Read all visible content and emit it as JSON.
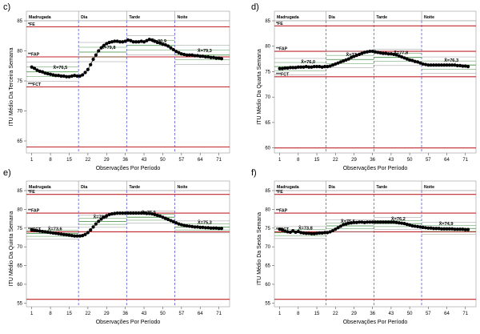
{
  "figure": {
    "xlabel": "Observações Por Período",
    "period_labels": [
      "Madrugada",
      "Dia",
      "Tarde",
      "Noite"
    ]
  },
  "colors": {
    "limit_line": "#c0262d",
    "period_divider": "#5b5bd6",
    "data": "#000000",
    "mean_line": "#8a8a8a",
    "mean_accent": "#3a8a3a"
  },
  "chart_data": [
    {
      "panel_label": "c)",
      "type": "line",
      "ylabel": "ITU Médio Da Terceira Semana",
      "ylim": [
        63,
        85
      ],
      "yticks": [
        65,
        70,
        75,
        80,
        85
      ],
      "xticks": [
        1,
        8,
        15,
        22,
        29,
        36,
        43,
        50,
        57,
        64,
        71
      ],
      "xlim": [
        -1,
        75
      ],
      "period_bounds": [
        18.5,
        36.5,
        54.5
      ],
      "limit_lines": [
        {
          "label": "*FE",
          "value": 84
        },
        {
          "label": "**FAP",
          "value": 79
        },
        {
          "label": "***FCT",
          "value": 74
        },
        {
          "label": "",
          "value": 64
        }
      ],
      "means": [
        {
          "label": "X̄=76,5",
          "value": 76.5,
          "label_x": 9
        },
        {
          "label": "X̄=79,8",
          "value": 79.8,
          "label_x": 27
        },
        {
          "label": "X̄=80,9",
          "value": 80.9,
          "label_x": 46
        },
        {
          "label": "X̄=79,3",
          "value": 79.3,
          "label_x": 63
        }
      ],
      "series": [
        {
          "values": [
            77.3,
            77.1,
            76.8,
            76.6,
            76.5,
            76.3,
            76.2,
            76.1,
            76.0,
            75.9,
            75.9,
            75.8,
            75.8,
            75.7,
            75.7,
            75.8,
            75.9,
            75.8,
            75.8,
            76.0,
            76.4,
            76.9,
            77.7,
            78.6,
            79.3,
            80.0,
            80.5,
            80.9,
            81.2,
            81.4,
            81.5,
            81.6,
            81.6,
            81.5,
            81.5,
            81.6,
            81.8,
            81.7,
            81.5,
            81.5,
            81.5,
            81.6,
            81.5,
            81.7,
            81.9,
            81.8,
            81.6,
            81.4,
            81.3,
            81.1,
            81.0,
            80.8,
            80.5,
            80.2,
            79.9,
            79.7,
            79.5,
            79.4,
            79.3,
            79.3,
            79.3,
            79.2,
            79.2,
            79.1,
            79.1,
            79.0,
            79.0,
            78.9,
            78.9,
            78.8,
            78.8,
            78.7
          ]
        }
      ]
    },
    {
      "panel_label": "d)",
      "type": "line",
      "ylabel": "ITU Médio Da Quarta Semana",
      "ylim": [
        59,
        85
      ],
      "yticks": [
        60,
        65,
        70,
        75,
        80,
        85
      ],
      "xticks": [
        1,
        8,
        15,
        22,
        29,
        36,
        43,
        50,
        57,
        64,
        71
      ],
      "xlim": [
        -1,
        75
      ],
      "period_bounds": [
        18.5,
        36.5,
        54.5
      ],
      "limit_lines": [
        {
          "label": "*FE",
          "value": 84
        },
        {
          "label": "**FAP",
          "value": 79
        },
        {
          "label": "***FCT",
          "value": 74
        },
        {
          "label": "",
          "value": 60
        }
      ],
      "means": [
        {
          "label": "X̄=76,0",
          "value": 76.0,
          "label_x": 9
        },
        {
          "label": "X̄=77,4",
          "value": 77.4,
          "label_x": 26
        },
        {
          "label": "X̄=77,8",
          "value": 77.8,
          "label_x": 44
        },
        {
          "label": "X̄=76,3",
          "value": 76.3,
          "label_x": 63
        }
      ],
      "series": [
        {
          "values": [
            75.6,
            75.6,
            75.7,
            75.7,
            75.8,
            75.8,
            75.8,
            75.9,
            75.9,
            75.9,
            76.0,
            75.9,
            75.9,
            76.0,
            76.0,
            76.0,
            75.9,
            76.0,
            76.0,
            76.1,
            76.3,
            76.5,
            76.7,
            76.9,
            77.1,
            77.3,
            77.5,
            77.8,
            78.0,
            78.2,
            78.4,
            78.6,
            78.8,
            78.9,
            79.0,
            79.0,
            78.9,
            78.8,
            78.7,
            78.6,
            78.6,
            78.5,
            78.5,
            78.4,
            78.3,
            78.1,
            77.9,
            77.7,
            77.5,
            77.3,
            77.2,
            77.0,
            76.9,
            76.7,
            76.5,
            76.4,
            76.3,
            76.3,
            76.3,
            76.3,
            76.3,
            76.3,
            76.3,
            76.3,
            76.3,
            76.3,
            76.3,
            76.2,
            76.2,
            76.1,
            76.1,
            76.0
          ]
        }
      ]
    },
    {
      "panel_label": "e)",
      "type": "line",
      "ylabel": "ITU Médio Da Quinta Semana",
      "ylim": [
        54,
        85
      ],
      "yticks": [
        55,
        60,
        65,
        70,
        75,
        80,
        85
      ],
      "xticks": [
        1,
        8,
        15,
        22,
        29,
        36,
        43,
        50,
        57,
        64,
        71
      ],
      "xlim": [
        -1,
        75
      ],
      "period_bounds": [
        18.5,
        36.5,
        54.5
      ],
      "limit_lines": [
        {
          "label": "*FE",
          "value": 84
        },
        {
          "label": "**FAP",
          "value": 79
        },
        {
          "label": "***FCT",
          "value": 74
        },
        {
          "label": "",
          "value": 56
        }
      ],
      "means": [
        {
          "label": "X̄=73,6",
          "value": 73.6,
          "label_x": 7
        },
        {
          "label": "X̄=76,8",
          "value": 76.8,
          "label_x": 24
        },
        {
          "label": "X̄=77,9",
          "value": 77.9,
          "label_x": 42
        },
        {
          "label": "X̄=75,3",
          "value": 75.3,
          "label_x": 63
        }
      ],
      "series": [
        {
          "values": [
            74.5,
            74.4,
            74.3,
            74.2,
            74.1,
            74.0,
            73.9,
            73.8,
            73.7,
            73.6,
            73.5,
            73.4,
            73.3,
            73.2,
            73.1,
            73.0,
            72.9,
            72.9,
            72.9,
            73.0,
            73.3,
            73.8,
            74.5,
            75.3,
            76.1,
            76.8,
            77.4,
            77.9,
            78.3,
            78.6,
            78.8,
            78.9,
            79.0,
            79.0,
            79.0,
            79.0,
            79.0,
            79.0,
            79.0,
            79.0,
            79.0,
            79.0,
            79.0,
            78.9,
            78.9,
            78.8,
            78.6,
            78.4,
            78.2,
            77.9,
            77.6,
            77.3,
            77.0,
            76.7,
            76.4,
            76.1,
            75.9,
            75.7,
            75.6,
            75.5,
            75.4,
            75.3,
            75.3,
            75.2,
            75.2,
            75.1,
            75.1,
            75.0,
            75.0,
            75.0,
            74.9,
            74.9
          ]
        }
      ]
    },
    {
      "panel_label": "f)",
      "type": "line",
      "ylabel": "ITU Médio Da Sexta Semana",
      "ylim": [
        54,
        85
      ],
      "yticks": [
        55,
        60,
        65,
        70,
        75,
        80,
        85
      ],
      "xticks": [
        1,
        8,
        15,
        22,
        29,
        36,
        43,
        50,
        57,
        64,
        71
      ],
      "xlim": [
        -1,
        75
      ],
      "period_bounds": [
        18.5,
        36.5,
        54.5
      ],
      "limit_lines": [
        {
          "label": "*FE",
          "value": 84
        },
        {
          "label": "**FAP",
          "value": 79
        },
        {
          "label": "***FCT",
          "value": 74
        },
        {
          "label": "",
          "value": 56
        }
      ],
      "means": [
        {
          "label": "X̄=73,8",
          "value": 73.8,
          "label_x": 8
        },
        {
          "label": "X̄=75,6",
          "value": 75.6,
          "label_x": 24
        },
        {
          "label": "X̄=76,2",
          "value": 76.2,
          "label_x": 43
        },
        {
          "label": "X̄=74,9",
          "value": 74.9,
          "label_x": 61
        }
      ],
      "series": [
        {
          "values": [
            74.7,
            74.5,
            74.2,
            74.0,
            73.9,
            74.3,
            73.9,
            74.1,
            73.8,
            73.7,
            73.6,
            73.6,
            73.5,
            73.5,
            73.6,
            73.7,
            73.7,
            73.8,
            73.8,
            74.0,
            74.3,
            74.7,
            75.1,
            75.5,
            75.9,
            76.1,
            76.3,
            76.4,
            76.5,
            76.5,
            76.6,
            76.6,
            76.5,
            76.6,
            76.6,
            76.6,
            76.6,
            76.6,
            76.6,
            76.6,
            76.6,
            76.6,
            76.6,
            76.6,
            76.5,
            76.4,
            76.3,
            76.2,
            76.0,
            75.8,
            75.6,
            75.5,
            75.4,
            75.3,
            75.2,
            75.1,
            75.0,
            75.0,
            74.9,
            74.9,
            74.9,
            74.8,
            74.8,
            74.8,
            74.8,
            74.8,
            74.7,
            74.7,
            74.7,
            74.7,
            74.6,
            74.6
          ]
        }
      ]
    }
  ]
}
